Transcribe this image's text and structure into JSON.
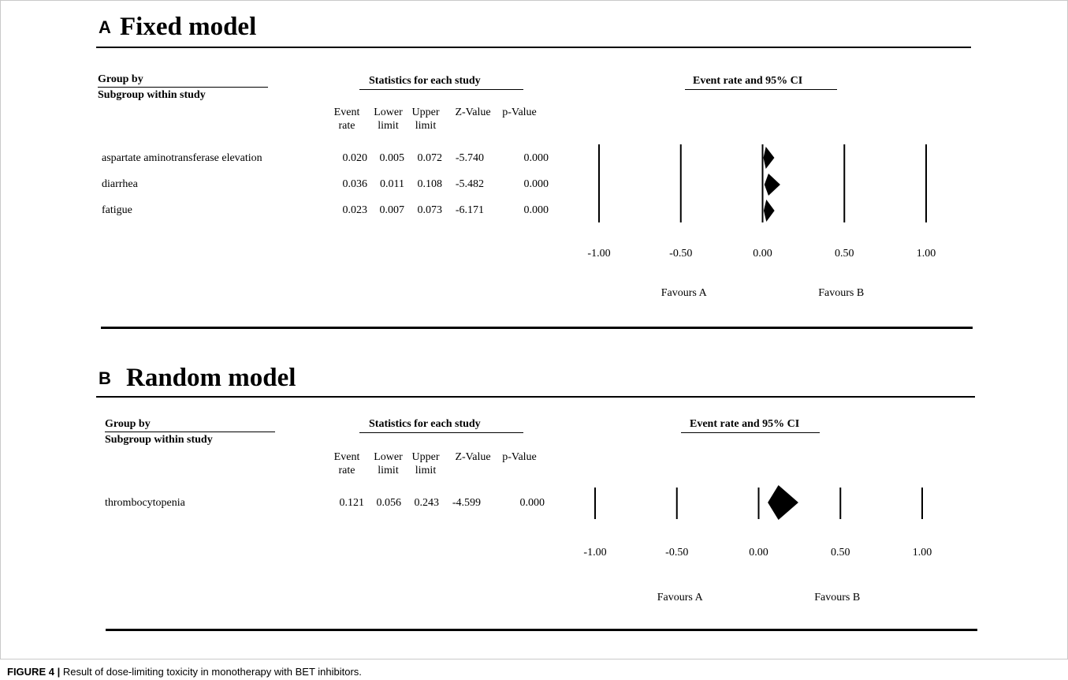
{
  "caption": {
    "label": "FIGURE 4 |",
    "text": "Result of dose-limiting toxicity in monotherapy with BET inhibitors."
  },
  "headers": {
    "group_by": "Group by",
    "subgroup": "Subgroup within study",
    "stats": "Statistics for each study",
    "plot": "Event rate and 95% CI",
    "columns": [
      {
        "l1": "Event",
        "l2": "rate"
      },
      {
        "l1": "Lower",
        "l2": "limit"
      },
      {
        "l1": "Upper",
        "l2": "limit"
      },
      {
        "l1": "",
        "l2": "Z-Value"
      },
      {
        "l1": "",
        "l2": "p-Value"
      }
    ]
  },
  "colors": {
    "ink": "#000000",
    "frame": "#c9c9c9"
  },
  "chart_data": [
    {
      "type": "forest",
      "panel": "A",
      "title": "Fixed model",
      "xlim": [
        -1.0,
        1.0
      ],
      "xticks": [
        "-1.00",
        "-0.50",
        "0.00",
        "0.50",
        "1.00"
      ],
      "favours_left": "Favours A",
      "favours_right": "Favours B",
      "rows": [
        {
          "name": "aspartate aminotransferase elevation",
          "rate": "0.020",
          "lower": "0.005",
          "upper": "0.072",
          "z": "-5.740",
          "p": "0.000"
        },
        {
          "name": "diarrhea",
          "rate": "0.036",
          "lower": "0.011",
          "upper": "0.108",
          "z": "-5.482",
          "p": "0.000"
        },
        {
          "name": "fatigue",
          "rate": "0.023",
          "lower": "0.007",
          "upper": "0.073",
          "z": "-6.171",
          "p": "0.000"
        }
      ]
    },
    {
      "type": "forest",
      "panel": "B",
      "title": "Random model",
      "xlim": [
        -1.0,
        1.0
      ],
      "xticks": [
        "-1.00",
        "-0.50",
        "0.00",
        "0.50",
        "1.00"
      ],
      "favours_left": "Favours A",
      "favours_right": "Favours B",
      "rows": [
        {
          "name": "thrombocytopenia",
          "rate": "0.121",
          "lower": "0.056",
          "upper": "0.243",
          "z": "-4.599",
          "p": "0.000"
        }
      ]
    }
  ]
}
